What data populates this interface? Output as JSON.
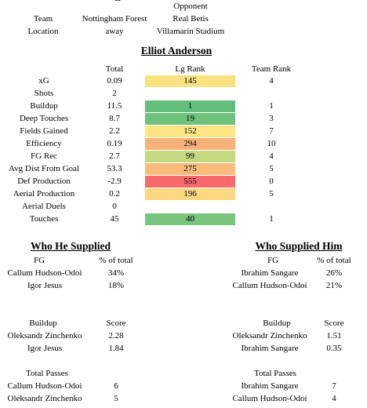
{
  "header": {
    "dashes": "--",
    "opponent_label": "Opponent",
    "team_label": "Team",
    "team_value": "Nottingham Forest",
    "opponent_team": "Real Betis",
    "location_label": "Location",
    "location_value": "away",
    "stadium": "Villamarin Stadium"
  },
  "player_name": "Elliot Anderson",
  "stats": {
    "headers": {
      "total": "Total",
      "lg_rank": "Lg Rank",
      "team_rank": "Team Rank"
    },
    "rows": [
      {
        "label": "xG",
        "total": "0.09",
        "lg_rank": "145",
        "team_rank": "4",
        "color": "#f9e27f"
      },
      {
        "label": "Shots",
        "total": "2",
        "lg_rank": "",
        "team_rank": "",
        "color": ""
      },
      {
        "label": "Buildup",
        "total": "11.5",
        "lg_rank": "1",
        "team_rank": "1",
        "color": "#63be7b"
      },
      {
        "label": "Deep Touches",
        "total": "8.7",
        "lg_rank": "19",
        "team_rank": "3",
        "color": "#6ec27c"
      },
      {
        "label": "Fields Gained",
        "total": "2.2",
        "lg_rank": "152",
        "team_rank": "7",
        "color": "#fee583"
      },
      {
        "label": "Efficiency",
        "total": "0.19",
        "lg_rank": "294",
        "team_rank": "10",
        "color": "#f8b279"
      },
      {
        "label": "FG Rec",
        "total": "2.7",
        "lg_rank": "99",
        "team_rank": "4",
        "color": "#c5d980"
      },
      {
        "label": "Avg Dist From Goal",
        "total": "53.3",
        "lg_rank": "275",
        "team_rank": "5",
        "color": "#f9bc7b"
      },
      {
        "label": "Def Production",
        "total": "-2.9",
        "lg_rank": "555",
        "team_rank": "0",
        "color": "#f8696b"
      },
      {
        "label": "Aerial Production",
        "total": "0.2",
        "lg_rank": "196",
        "team_rank": "5",
        "color": "#fdd880"
      },
      {
        "label": "Aerial Duels",
        "total": "0",
        "lg_rank": "",
        "team_rank": "",
        "color": ""
      },
      {
        "label": "Touches",
        "total": "45",
        "lg_rank": "40",
        "team_rank": "1",
        "color": "#79c57d"
      }
    ]
  },
  "supplied": {
    "title": "Who He Supplied",
    "fg_header": "FG",
    "pct_header": "% of total",
    "fg": [
      {
        "name": "Callum Hudson-Odoi",
        "value": "34%"
      },
      {
        "name": "Igor Jesus",
        "value": "18%"
      }
    ],
    "buildup_header": "Buildup",
    "score_header": "Score",
    "buildup": [
      {
        "name": "Oleksandr Zinchenko",
        "value": "2.28"
      },
      {
        "name": "Igor Jesus",
        "value": "1.84"
      }
    ],
    "passes_header": "Total Passes",
    "passes": [
      {
        "name": "Callum Hudson-Odoi",
        "value": "6"
      },
      {
        "name": "Oleksandr Zinchenko",
        "value": "5"
      }
    ]
  },
  "supplied_him": {
    "title": "Who Supplied Him",
    "fg_header": "FG",
    "pct_header": "% of total",
    "fg": [
      {
        "name": "Ibrahim Sangare",
        "value": "26%"
      },
      {
        "name": "Callum Hudson-Odoi",
        "value": "21%"
      }
    ],
    "buildup_header": "Buildup",
    "score_header": "Score",
    "buildup": [
      {
        "name": "Oleksandr Zinchenko",
        "value": "1.51"
      },
      {
        "name": "Ibrahim Sangare",
        "value": "0.35"
      }
    ],
    "passes_header": "Total Passes",
    "passes": [
      {
        "name": "Ibrahim Sangare",
        "value": "7"
      },
      {
        "name": "Callum Hudson-Odoi",
        "value": "4"
      }
    ]
  }
}
